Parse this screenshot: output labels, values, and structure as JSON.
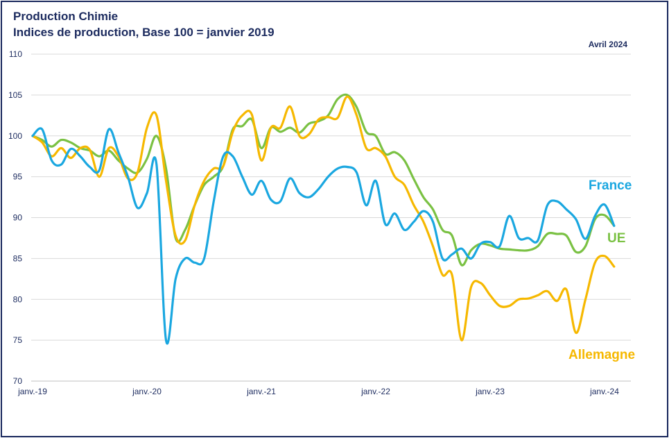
{
  "title": "Production Chimie",
  "subtitle": "Indices de production, Base 100 = janvier 2019",
  "date_label": "Avril 2024",
  "chart_data": {
    "type": "line",
    "ylim": [
      70,
      110
    ],
    "yticks": [
      70,
      75,
      80,
      85,
      90,
      95,
      100,
      105,
      110
    ],
    "xlim": [
      0,
      65
    ],
    "xticks": [
      {
        "label": "janv.-19",
        "x": 0
      },
      {
        "label": "janv.-20",
        "x": 12
      },
      {
        "label": "janv.-21",
        "x": 24
      },
      {
        "label": "janv.-22",
        "x": 36
      },
      {
        "label": "janv.-23",
        "x": 48
      },
      {
        "label": "janv.-24",
        "x": 60
      }
    ],
    "grid": true,
    "series": [
      {
        "name": "France",
        "color": "#1aa7e0",
        "values": [
          100,
          100.8,
          97,
          96.5,
          98.4,
          97.5,
          96.2,
          95.8,
          100.8,
          98,
          95,
          91.2,
          93,
          96.5,
          75,
          82.5,
          85,
          84.5,
          85,
          92,
          97.5,
          97.5,
          95,
          92.8,
          94.5,
          92.2,
          92,
          94.8,
          93,
          92.5,
          93.5,
          95,
          96,
          96.2,
          95.5,
          91.5,
          94.5,
          89.2,
          90.5,
          88.5,
          89.5,
          90.8,
          89.5,
          85,
          85.5,
          86.2,
          85,
          86.8,
          87,
          86.5,
          90.2,
          87.5,
          87.5,
          87.2,
          91.5,
          92,
          91,
          89.8,
          87.4,
          90.2,
          91.6,
          89
        ]
      },
      {
        "name": "UE",
        "color": "#7ac143",
        "values": [
          100,
          99.5,
          98.7,
          99.5,
          99.2,
          98.5,
          98.2,
          97.5,
          98.2,
          97,
          96,
          95.5,
          97.2,
          100,
          96,
          87.5,
          88.5,
          91.5,
          94,
          95,
          96.3,
          100.8,
          101.2,
          102,
          98.5,
          101,
          100.5,
          101,
          100.4,
          101.5,
          101.8,
          102.5,
          104.5,
          105,
          103.5,
          100.5,
          100,
          97.8,
          98,
          97,
          94.7,
          92.5,
          91,
          88.5,
          87.8,
          84.2,
          86,
          86.8,
          86.6,
          86.2,
          86.1,
          86,
          86,
          86.5,
          88,
          88,
          87.8,
          85.8,
          86.5,
          89.8,
          90.3,
          89
        ]
      },
      {
        "name": "Allemagne",
        "color": "#f6b800",
        "values": [
          100,
          99.2,
          97.5,
          98.5,
          97.3,
          98.5,
          98.3,
          95,
          98.5,
          97.5,
          94.8,
          95.5,
          101,
          102.5,
          94.5,
          87.8,
          87.2,
          91.5,
          94.5,
          96,
          96.3,
          100.5,
          102.5,
          102.6,
          97,
          101,
          101,
          103.6,
          100,
          100.2,
          102,
          102.3,
          102.2,
          104.8,
          102.5,
          98.5,
          98.5,
          97.5,
          95,
          94,
          91.5,
          89.5,
          86.5,
          83,
          83,
          75,
          81.5,
          82,
          80.5,
          79.2,
          79.2,
          80,
          80.1,
          80.5,
          81,
          79.8,
          81.2,
          75.9,
          80,
          84.5,
          85.3,
          84
        ]
      }
    ]
  }
}
